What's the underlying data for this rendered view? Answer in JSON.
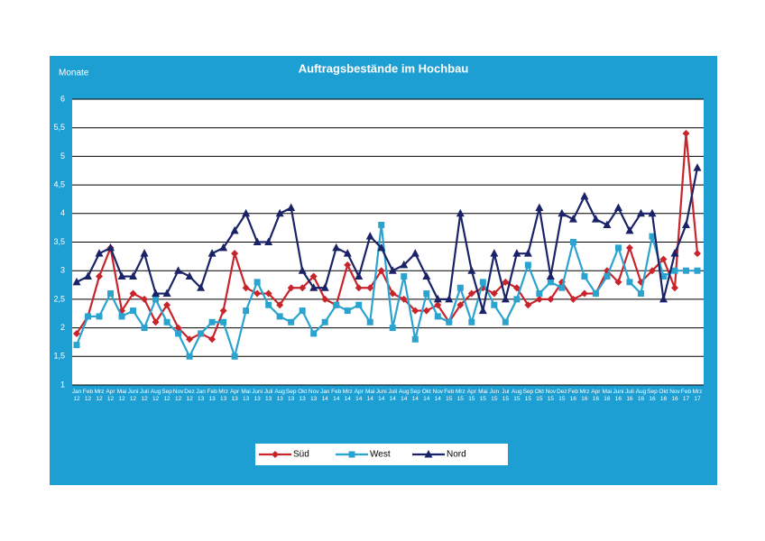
{
  "chart_data": {
    "type": "line",
    "title": "Auftragsbestände im Hochbau",
    "y_label": "Monate",
    "categories": [
      "Jan 12",
      "Feb 12",
      "Mrz 12",
      "Apr 12",
      "Mai 12",
      "Juni 12",
      "Juli 12",
      "Aug 12",
      "Sep 12",
      "Nov 12",
      "Dez 12",
      "Jan 13",
      "Feb 13",
      "Mrz 13",
      "Apr 13",
      "Mai 13",
      "Juni 13",
      "Juli 13",
      "Aug 13",
      "Sep 13",
      "Okt 13",
      "Nov 13",
      "Jan 14",
      "Feb 14",
      "Mrz 14",
      "Apr 14",
      "Mai 14",
      "Juni 14",
      "Juli 14",
      "Aug 14",
      "Sep 14",
      "Okt 14",
      "Nov 14",
      "Feb 15",
      "Mrz 15",
      "Apr 15",
      "Mai 15",
      "Jun 15",
      "Jul 15",
      "Aug 15",
      "Sep 15",
      "Okt 15",
      "Nov 15",
      "Dez 15",
      "Feb 16",
      "Mrz 16",
      "Apr 16",
      "Mai 16",
      "Juni 16",
      "Juli 16",
      "Aug 16",
      "Sep 16",
      "Okt 16",
      "Nov 16",
      "Feb 17",
      "Mrz 17"
    ],
    "series": [
      {
        "name": "Süd",
        "color": "#c8242b",
        "marker": "diamond",
        "values": [
          1.9,
          2.2,
          2.9,
          3.4,
          2.3,
          2.6,
          2.5,
          2.1,
          2.4,
          2.0,
          1.8,
          1.9,
          1.8,
          2.3,
          3.3,
          2.7,
          2.6,
          2.6,
          2.4,
          2.7,
          2.7,
          2.9,
          2.5,
          2.4,
          3.1,
          2.7,
          2.7,
          3.0,
          2.6,
          2.5,
          2.3,
          2.3,
          2.4,
          2.1,
          2.4,
          2.6,
          2.7,
          2.6,
          2.8,
          2.7,
          2.4,
          2.5,
          2.5,
          2.8,
          2.5,
          2.6,
          2.6,
          3.0,
          2.8,
          3.4,
          2.8,
          3.0,
          3.2,
          2.7,
          5.4,
          3.3
        ]
      },
      {
        "name": "West",
        "color": "#2aa3cf",
        "marker": "square",
        "values": [
          1.7,
          2.2,
          2.2,
          2.6,
          2.2,
          2.3,
          2.0,
          2.5,
          2.1,
          1.9,
          1.5,
          1.9,
          2.1,
          2.1,
          1.5,
          2.3,
          2.8,
          2.4,
          2.2,
          2.1,
          2.3,
          1.9,
          2.1,
          2.4,
          2.3,
          2.4,
          2.1,
          3.8,
          2.0,
          2.9,
          1.8,
          2.6,
          2.2,
          2.1,
          2.7,
          2.1,
          2.8,
          2.4,
          2.1,
          2.5,
          3.1,
          2.6,
          2.8,
          2.7,
          3.5,
          2.9,
          2.6,
          2.9,
          3.4,
          2.8,
          2.6,
          3.6,
          2.9,
          3.0,
          3.0,
          3.0
        ]
      },
      {
        "name": "Nord",
        "color": "#1b2368",
        "marker": "triangle",
        "values": [
          2.8,
          2.9,
          3.3,
          3.4,
          2.9,
          2.9,
          3.3,
          2.6,
          2.6,
          3.0,
          2.9,
          2.7,
          3.3,
          3.4,
          3.7,
          4.0,
          3.5,
          3.5,
          4.0,
          4.1,
          3.0,
          2.7,
          2.7,
          3.4,
          3.3,
          2.9,
          3.6,
          3.4,
          3.0,
          3.1,
          3.3,
          2.9,
          2.5,
          2.5,
          4.0,
          3.0,
          2.3,
          3.3,
          2.5,
          3.3,
          3.3,
          4.1,
          2.9,
          4.0,
          3.9,
          4.3,
          3.9,
          3.8,
          4.1,
          3.7,
          4.0,
          4.0,
          2.5,
          3.3,
          3.8,
          4.8
        ]
      }
    ],
    "ylim": [
      1,
      6
    ],
    "yticks": [
      1,
      {
        "value": 1.5,
        "label": "1,5"
      },
      2,
      {
        "value": 2.5,
        "label": "2,5"
      },
      3,
      {
        "value": 3.5,
        "label": "3,5"
      },
      4,
      {
        "value": 4.5,
        "label": "4,5"
      },
      5,
      {
        "value": 5.5,
        "label": "5,5"
      },
      6
    ],
    "grid": true,
    "legend": "bottom"
  }
}
